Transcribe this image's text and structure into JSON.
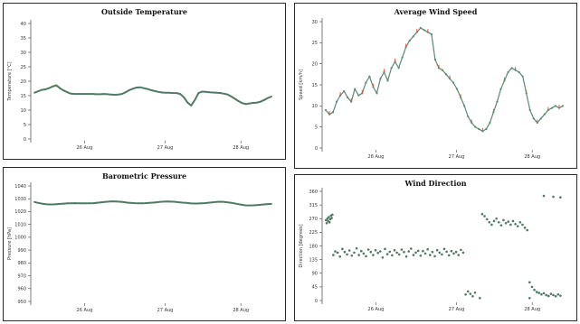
{
  "chart_data": [
    {
      "type": "line",
      "title": "Outside Temperature",
      "ylabel": "Temperature [°C]",
      "xlabel": "",
      "ylim": [
        0,
        40
      ],
      "yticks": [
        "0",
        "5",
        "10",
        "15",
        "20",
        "25",
        "30",
        "35",
        "40"
      ],
      "xticks": [
        "26 Aug",
        "27 Aug",
        "28 Aug"
      ],
      "colors": {
        "line": "#4f7a63"
      },
      "series": [
        {
          "values": [
            16,
            16.5,
            17,
            17.2,
            17.6,
            18.2,
            18.6,
            17.6,
            16.8,
            16.2,
            15.7,
            15.6,
            15.6,
            15.6,
            15.6,
            15.6,
            15.6,
            15.5,
            15.5,
            15.6,
            15.5,
            15.4,
            15.3,
            15.4,
            15.6,
            16.2,
            16.9,
            17.4,
            17.8,
            17.9,
            17.6,
            17.3,
            16.9,
            16.6,
            16.3,
            16.1,
            16,
            16,
            15.9,
            15.9,
            15.6,
            14.4,
            12.6,
            11.6,
            13.5,
            15.9,
            16.4,
            16.3,
            16.2,
            16.1,
            16,
            15.9,
            15.7,
            15.4,
            14.7,
            13.9,
            13.1,
            12.4,
            12.1,
            12.3,
            12.5,
            12.6,
            12.9,
            13.5,
            14.2,
            14.7
          ]
        }
      ]
    },
    {
      "type": "line",
      "title": "Average Wind Speed",
      "ylabel": "Speed [km/h]",
      "xlabel": "",
      "ylim": [
        0,
        30
      ],
      "yticks": [
        "0",
        "5",
        "10",
        "15",
        "20",
        "25",
        "30"
      ],
      "xticks": [
        "26 Aug",
        "27 Aug",
        "28 Aug"
      ],
      "colors": {
        "line": "#5a8a70",
        "gust": "#e2553b"
      },
      "series": [
        {
          "values": [
            9,
            8,
            8.5,
            11,
            12.5,
            13.5,
            12,
            11,
            14,
            12.5,
            13,
            15.5,
            17,
            14.5,
            13,
            16.5,
            18,
            16,
            19,
            20.5,
            19,
            21.5,
            24,
            25.5,
            26.5,
            27.5,
            28.5,
            28,
            27.5,
            27,
            21,
            19,
            18.5,
            17.5,
            16.5,
            15.5,
            14,
            12,
            10,
            7.5,
            6,
            5,
            4.5,
            4,
            4.5,
            6,
            8.5,
            11,
            14,
            16,
            18,
            19,
            18.5,
            18,
            17,
            13,
            9,
            7,
            6,
            7,
            8,
            9,
            9.5,
            10,
            9.5,
            10
          ]
        }
      ]
    },
    {
      "type": "line",
      "title": "Barometric Pressure",
      "ylabel": "Pressure [hPa]",
      "xlabel": "",
      "ylim": [
        950,
        1040
      ],
      "yticks": [
        "950",
        "960",
        "970",
        "980",
        "990",
        "1000",
        "1010",
        "1020",
        "1030",
        "1040"
      ],
      "xticks": [
        "26 Aug",
        "27 Aug",
        "28 Aug"
      ],
      "colors": {
        "line": "#4f7a63"
      },
      "series": [
        {
          "values": [
            1027.5,
            1026.8,
            1026.2,
            1025.8,
            1025.6,
            1025.6,
            1025.8,
            1026,
            1026.2,
            1026.4,
            1026.5,
            1026.6,
            1026.5,
            1026.4,
            1026.4,
            1026.5,
            1026.6,
            1026.9,
            1027.2,
            1027.5,
            1027.8,
            1028,
            1027.9,
            1027.7,
            1027.4,
            1027,
            1026.8,
            1026.6,
            1026.5,
            1026.5,
            1026.6,
            1026.8,
            1027,
            1027.3,
            1027.6,
            1027.8,
            1027.9,
            1027.8,
            1027.6,
            1027.3,
            1027,
            1026.8,
            1026.5,
            1026.3,
            1026.3,
            1026.4,
            1026.6,
            1026.9,
            1027.2,
            1027.5,
            1027.7,
            1027.6,
            1027.3,
            1026.9,
            1026.4,
            1025.8,
            1025.3,
            1024.9,
            1024.8,
            1024.9,
            1025,
            1025.3,
            1025.6,
            1025.9,
            1026
          ]
        }
      ]
    },
    {
      "type": "scatter",
      "title": "Wind Direction",
      "ylabel": "Direction [degrees]",
      "xlabel": "",
      "ylim": [
        0,
        360
      ],
      "yticks": [
        "0",
        "45",
        "90",
        "135",
        "180",
        "225",
        "270",
        "315",
        "360"
      ],
      "xticks": [
        "26 Aug",
        "27 Aug",
        "28 Aug"
      ],
      "colors": {
        "point": "#4f7a63"
      },
      "series": [
        {
          "values": [
            [
              0.1,
              265
            ],
            [
              0.4,
              255
            ],
            [
              0.7,
              270
            ],
            [
              1,
              262
            ],
            [
              1.3,
              275
            ],
            [
              1.6,
              258
            ],
            [
              1.9,
              268
            ],
            [
              2.2,
              280
            ],
            [
              2.5,
              272
            ],
            [
              2.8,
              283
            ],
            [
              3.2,
              150
            ],
            [
              4,
              162
            ],
            [
              5,
              158
            ],
            [
              6,
              145
            ],
            [
              7,
              170
            ],
            [
              8,
              160
            ],
            [
              9,
              152
            ],
            [
              10,
              165
            ],
            [
              11,
              148
            ],
            [
              12,
              158
            ],
            [
              13,
              172
            ],
            [
              14,
              150
            ],
            [
              15,
              163
            ],
            [
              16,
              155
            ],
            [
              17,
              146
            ],
            [
              18,
              168
            ],
            [
              19,
              160
            ],
            [
              20,
              150
            ],
            [
              21,
              166
            ],
            [
              22,
              157
            ],
            [
              23,
              162
            ],
            [
              24,
              142
            ],
            [
              25,
              170
            ],
            [
              26,
              153
            ],
            [
              27,
              161
            ],
            [
              28,
              149
            ],
            [
              29,
              166
            ],
            [
              30,
              158
            ],
            [
              31,
              152
            ],
            [
              32,
              168
            ],
            [
              33,
              160
            ],
            [
              34,
              145
            ],
            [
              35,
              162
            ],
            [
              36,
              171
            ],
            [
              37,
              150
            ],
            [
              38,
              158
            ],
            [
              39,
              164
            ],
            [
              40,
              148
            ],
            [
              41,
              163
            ],
            [
              42,
              155
            ],
            [
              43,
              169
            ],
            [
              44,
              150
            ],
            [
              45,
              160
            ],
            [
              46,
              146
            ],
            [
              47,
              166
            ],
            [
              48,
              158
            ],
            [
              49,
              152
            ],
            [
              50,
              170
            ],
            [
              51,
              161
            ],
            [
              52,
              149
            ],
            [
              53,
              163
            ],
            [
              54,
              155
            ],
            [
              55,
              160
            ],
            [
              56,
              150
            ],
            [
              57,
              167
            ],
            [
              58,
              158
            ],
            [
              59,
              20
            ],
            [
              60,
              30
            ],
            [
              61,
              22
            ],
            [
              62,
              14
            ],
            [
              63,
              26
            ],
            [
              66,
              285
            ],
            [
              67,
              278
            ],
            [
              68,
              268
            ],
            [
              69,
              258
            ],
            [
              70,
              250
            ],
            [
              71,
              262
            ],
            [
              72,
              270
            ],
            [
              73,
              258
            ],
            [
              74,
              248
            ],
            [
              75,
              265
            ],
            [
              76,
              255
            ],
            [
              77,
              260
            ],
            [
              78,
              250
            ],
            [
              79,
              262
            ],
            [
              80,
              252
            ],
            [
              81,
              245
            ],
            [
              82,
              258
            ],
            [
              83,
              250
            ],
            [
              84,
              240
            ],
            [
              85,
              232
            ],
            [
              86,
              60
            ],
            [
              87,
              45
            ],
            [
              88,
              35
            ],
            [
              89,
              28
            ],
            [
              90,
              25
            ],
            [
              91,
              20
            ],
            [
              92,
              24
            ],
            [
              93,
              18
            ],
            [
              94,
              15
            ],
            [
              95,
              22
            ],
            [
              96,
              18
            ],
            [
              97,
              14
            ],
            [
              98,
              20
            ],
            [
              99,
              16
            ],
            [
              92,
              345
            ],
            [
              96,
              342
            ],
            [
              99,
              340
            ],
            [
              65,
              8
            ],
            [
              86,
              8
            ]
          ]
        }
      ]
    }
  ]
}
